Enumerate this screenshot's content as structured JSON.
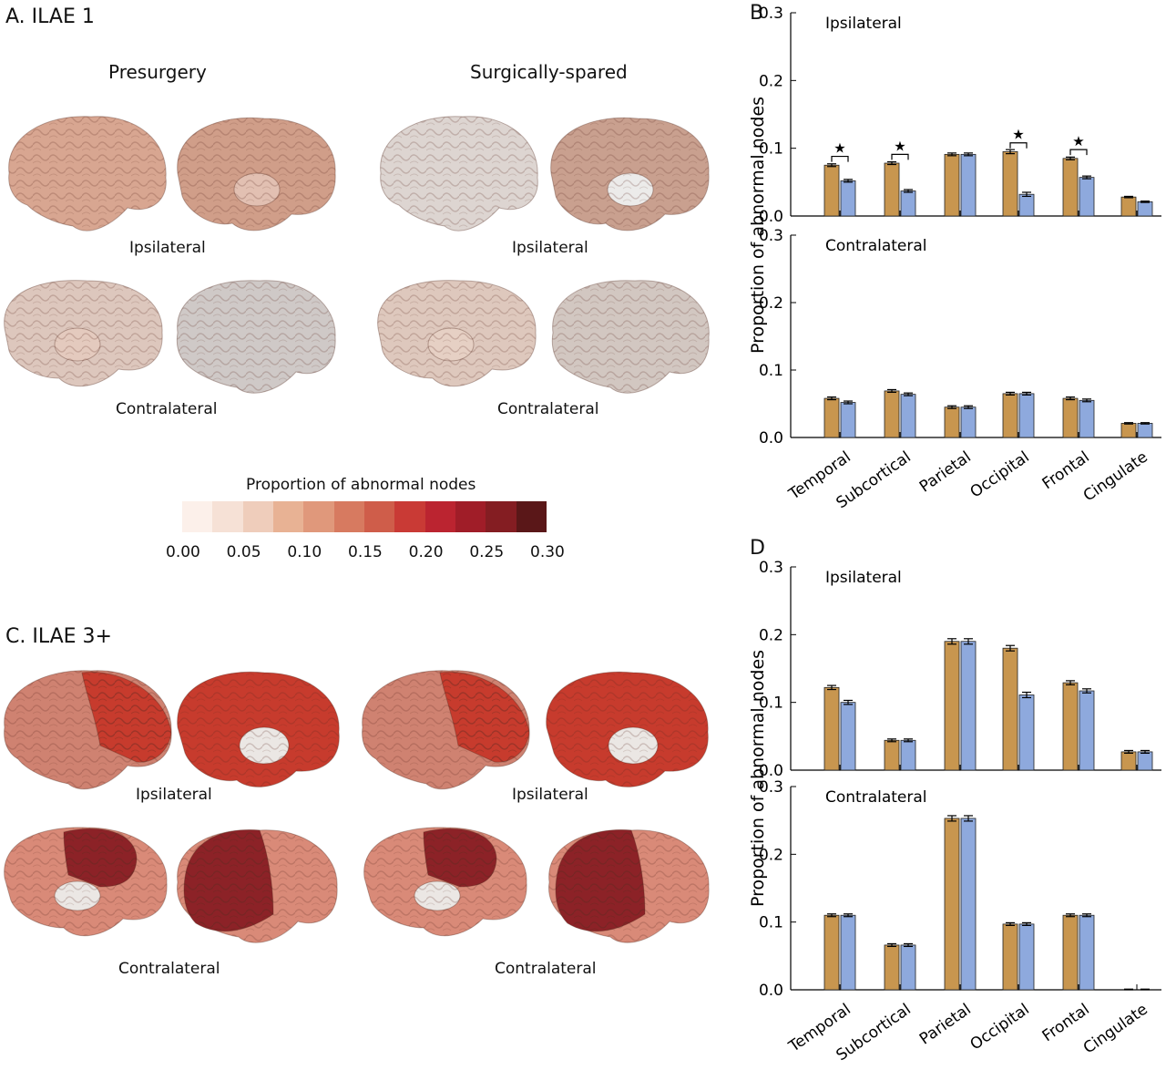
{
  "panelA": {
    "title": "A. ILAE 1",
    "col_left": "Presurgery",
    "col_right": "Surgically-spared",
    "label_ipsi_left": "Ipsilateral",
    "label_ipsi_right": "Ipsilateral",
    "label_contra_left": "Contralateral",
    "label_contra_right": "Contralateral"
  },
  "panelC": {
    "title": "C. ILAE 3+",
    "label_ipsi_left": "Ipsilateral",
    "label_ipsi_right": "Ipsilateral",
    "label_contra_left": "Contralateral",
    "label_contra_right": "Contralateral"
  },
  "colorbar": {
    "title": "Proportion of abnormal nodes",
    "colors": [
      "#fcf0ea",
      "#f6e1d6",
      "#efcdbb",
      "#e8b294",
      "#e0987b",
      "#d77a60",
      "#cf5d4a",
      "#c93a35",
      "#bb2430",
      "#a01d28",
      "#841d22",
      "#5a1718"
    ],
    "ticks": [
      "0.00",
      "0.05",
      "0.10",
      "0.15",
      "0.20",
      "0.25",
      "0.30"
    ]
  },
  "brain_colors": {
    "ilae1_pre_ipsi": [
      "#d8a691",
      "#d09e89"
    ],
    "ilae1_spared_ipsi": [
      "#ddd5d1",
      "#c9a08f"
    ],
    "ilae1_pre_contra": [
      "#ddc7bd",
      "#cfc9c7"
    ],
    "ilae1_spared_contra": [
      "#dec8bd",
      "#d2c7c1"
    ],
    "ilae3_ipsi_main": "#cf8271",
    "ilae3_ipsi_hot": "#c73b2d",
    "ilae3_contra_main": "#d98a78",
    "ilae3_contra_hot": "#8c2227"
  },
  "chart_data": [
    {
      "panel": "B",
      "type": "bar",
      "title": "Ipsilateral",
      "ylabel": "Proportion of abnormal nodes",
      "ylim": [
        0,
        0.3
      ],
      "yticks": [
        "0.0",
        "0.1",
        "0.2",
        "0.3"
      ],
      "categories": [
        "Temporal",
        "Subcortical",
        "Parietal",
        "Occipital",
        "Frontal",
        "Cingulate"
      ],
      "series": [
        {
          "name": "Presurgery",
          "color": "#c8964f",
          "values": [
            0.075,
            0.078,
            0.091,
            0.095,
            0.085,
            0.028
          ]
        },
        {
          "name": "Surgically-spared",
          "color": "#8ea9dd",
          "values": [
            0.052,
            0.037,
            0.091,
            0.032,
            0.057,
            0.021
          ]
        }
      ],
      "errors": [
        0.002,
        0.002,
        0.002,
        0.003,
        0.002,
        0.001
      ],
      "significant": [
        true,
        true,
        false,
        true,
        true,
        false
      ],
      "marker": "★"
    },
    {
      "panel": "B",
      "type": "bar",
      "title": "Contralateral",
      "ylim": [
        0,
        0.3
      ],
      "yticks": [
        "0.0",
        "0.1",
        "0.2",
        "0.3"
      ],
      "categories": [
        "Temporal",
        "Subcortical",
        "Parietal",
        "Occipital",
        "Frontal",
        "Cingulate"
      ],
      "series": [
        {
          "name": "Presurgery",
          "color": "#c8964f",
          "values": [
            0.058,
            0.069,
            0.045,
            0.065,
            0.058,
            0.021
          ]
        },
        {
          "name": "Surgically-spared",
          "color": "#8ea9dd",
          "values": [
            0.052,
            0.064,
            0.045,
            0.065,
            0.055,
            0.021
          ]
        }
      ],
      "errors": [
        0.002,
        0.002,
        0.002,
        0.002,
        0.002,
        0.001
      ]
    },
    {
      "panel": "D",
      "type": "bar",
      "title": "Ipsilateral",
      "ylabel": "Proportion of abnormal nodes",
      "ylim": [
        0,
        0.3
      ],
      "yticks": [
        "0.0",
        "0.1",
        "0.2",
        "0.3"
      ],
      "categories": [
        "Temporal",
        "Subcortical",
        "Parietal",
        "Occipital",
        "Frontal",
        "Cingulate"
      ],
      "series": [
        {
          "name": "Presurgery",
          "color": "#c8964f",
          "values": [
            0.122,
            0.044,
            0.19,
            0.18,
            0.129,
            0.027
          ]
        },
        {
          "name": "Surgically-spared",
          "color": "#8ea9dd",
          "values": [
            0.1,
            0.044,
            0.19,
            0.111,
            0.117,
            0.027
          ]
        }
      ],
      "errors": [
        0.003,
        0.002,
        0.004,
        0.004,
        0.003,
        0.002
      ]
    },
    {
      "panel": "D",
      "type": "bar",
      "title": "Contralateral",
      "ylim": [
        0,
        0.3
      ],
      "yticks": [
        "0.0",
        "0.1",
        "0.2",
        "0.3"
      ],
      "categories": [
        "Temporal",
        "Subcortical",
        "Parietal",
        "Occipital",
        "Frontal",
        "Cingulate"
      ],
      "series": [
        {
          "name": "Presurgery",
          "color": "#c8964f",
          "values": [
            0.11,
            0.066,
            0.253,
            0.097,
            0.11,
            0.0
          ]
        },
        {
          "name": "Surgically-spared",
          "color": "#8ea9dd",
          "values": [
            0.11,
            0.066,
            0.253,
            0.097,
            0.11,
            0.0
          ]
        }
      ],
      "errors": [
        0.002,
        0.002,
        0.004,
        0.002,
        0.002,
        0.001
      ]
    }
  ],
  "panel_letters": {
    "B": "B",
    "D": "D"
  }
}
